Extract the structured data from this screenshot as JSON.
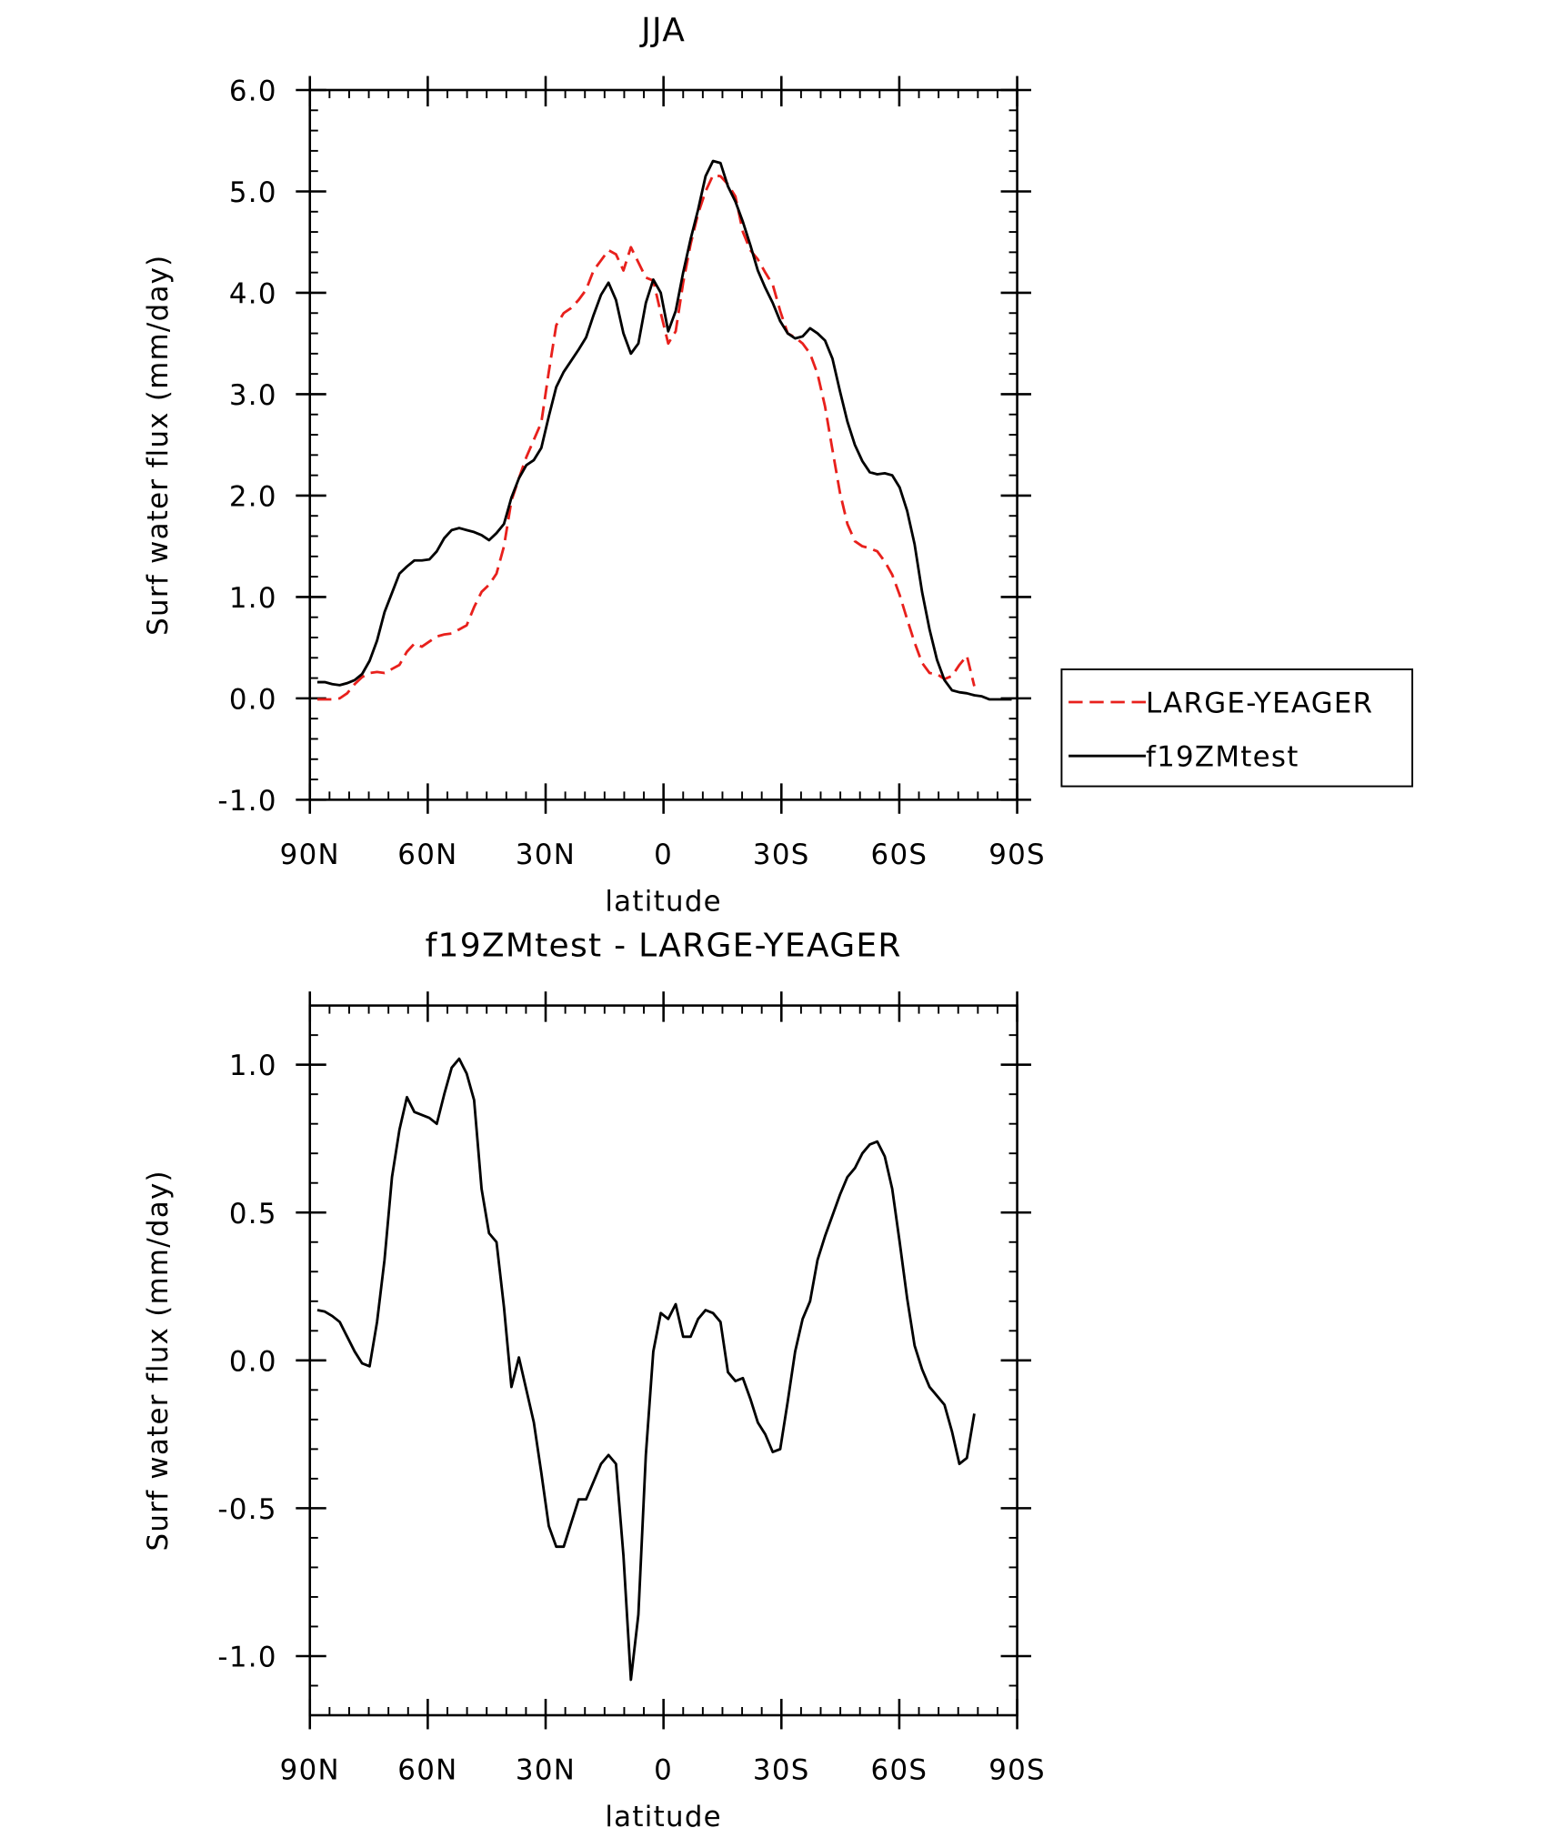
{
  "chart_data": [
    {
      "type": "line",
      "title": "JJA",
      "xlabel": "latitude",
      "ylabel": "Surf water flux (mm/day)",
      "x": [
        88.1,
        86.2,
        84.3,
        82.4,
        80.5,
        78.6,
        76.7,
        74.8,
        72.9,
        71.0,
        69.1,
        67.2,
        65.3,
        63.4,
        61.5,
        59.6,
        57.7,
        55.8,
        53.9,
        52.0,
        50.1,
        48.2,
        46.3,
        44.4,
        42.5,
        40.6,
        38.7,
        36.8,
        34.9,
        33.0,
        31.1,
        29.2,
        27.3,
        25.4,
        23.5,
        21.6,
        19.7,
        17.8,
        15.9,
        14.0,
        12.1,
        10.2,
        8.3,
        6.4,
        4.5,
        2.6,
        0.7,
        -1.2,
        -3.1,
        -5.0,
        -6.9,
        -8.8,
        -10.7,
        -12.6,
        -14.5,
        -16.4,
        -18.3,
        -20.2,
        -22.1,
        -24.0,
        -25.9,
        -27.8,
        -29.7,
        -31.6,
        -33.5,
        -35.4,
        -37.3,
        -39.2,
        -41.1,
        -43.0,
        -44.9,
        -46.8,
        -48.7,
        -50.6,
        -52.5,
        -54.4,
        -56.3,
        -58.2,
        -60.1,
        -62.0,
        -63.9,
        -65.8,
        -67.7,
        -69.6,
        -71.5,
        -73.4,
        -75.3,
        -77.2,
        -79.1,
        -81.0,
        -82.9,
        -84.8,
        -86.7,
        -88.6
      ],
      "series": [
        {
          "name": "LARGE-YEAGER",
          "color": "#e8201c",
          "dash": true,
          "values": [
            -0.01,
            -0.01,
            -0.01,
            0.0,
            0.05,
            0.14,
            0.21,
            0.25,
            0.26,
            0.25,
            0.29,
            0.33,
            0.46,
            0.54,
            0.51,
            0.56,
            0.61,
            0.63,
            0.64,
            0.68,
            0.72,
            0.9,
            1.05,
            1.12,
            1.23,
            1.5,
            1.95,
            2.17,
            2.38,
            2.55,
            2.72,
            3.22,
            3.68,
            3.8,
            3.85,
            3.93,
            4.03,
            4.22,
            4.32,
            4.42,
            4.38,
            4.22,
            4.45,
            4.3,
            4.15,
            4.12,
            3.8,
            3.5,
            3.62,
            4.1,
            4.48,
            4.78,
            5.0,
            5.16,
            5.15,
            5.07,
            4.95,
            4.6,
            4.42,
            4.33,
            4.2,
            4.08,
            3.82,
            3.6,
            3.56,
            3.5,
            3.4,
            3.2,
            2.88,
            2.45,
            2.03,
            1.72,
            1.55,
            1.5,
            1.48,
            1.45,
            1.35,
            1.22,
            1.02,
            0.78,
            0.55,
            0.35,
            0.25,
            0.24,
            0.19,
            0.22,
            0.33,
            0.42,
            0.12,
            null,
            null,
            null,
            null,
            null
          ]
        },
        {
          "name": "f19ZMtest",
          "color": "#000000",
          "dash": false,
          "values": [
            0.16,
            0.16,
            0.14,
            0.13,
            0.15,
            0.18,
            0.24,
            0.37,
            0.57,
            0.85,
            1.04,
            1.23,
            1.3,
            1.36,
            1.36,
            1.37,
            1.45,
            1.58,
            1.66,
            1.68,
            1.66,
            1.64,
            1.61,
            1.56,
            1.63,
            1.72,
            1.98,
            2.17,
            2.3,
            2.35,
            2.47,
            2.78,
            3.07,
            3.22,
            3.33,
            3.44,
            3.56,
            3.78,
            3.98,
            4.1,
            3.93,
            3.6,
            3.4,
            3.5,
            3.9,
            4.13,
            4.0,
            3.62,
            3.82,
            4.2,
            4.53,
            4.82,
            5.15,
            5.3,
            5.28,
            5.05,
            4.9,
            4.7,
            4.47,
            4.22,
            4.05,
            3.9,
            3.72,
            3.6,
            3.55,
            3.57,
            3.65,
            3.6,
            3.53,
            3.35,
            3.03,
            2.73,
            2.5,
            2.34,
            2.23,
            2.21,
            2.22,
            2.2,
            2.08,
            1.85,
            1.52,
            1.05,
            0.68,
            0.38,
            0.18,
            0.08,
            0.06,
            0.05,
            0.03,
            0.02,
            -0.01,
            -0.01,
            -0.01,
            -0.01
          ]
        }
      ],
      "xlim": [
        90,
        -90
      ],
      "xticks": [
        {
          "value": 90,
          "label": "90N"
        },
        {
          "value": 60,
          "label": "60N"
        },
        {
          "value": 30,
          "label": "30N"
        },
        0,
        {
          "value": -30,
          "label": "30S"
        },
        {
          "value": -60,
          "label": "60S"
        },
        {
          "value": -90,
          "label": "90S"
        }
      ],
      "ylim": [
        -1,
        6
      ],
      "yticks": [
        {
          "value": -1,
          "label": "-1.0"
        },
        {
          "value": 0,
          "label": "0.0"
        },
        {
          "value": 1,
          "label": "1.0"
        },
        {
          "value": 2,
          "label": "2.0"
        },
        {
          "value": 3,
          "label": "3.0"
        },
        {
          "value": 4,
          "label": "4.0"
        },
        {
          "value": 5,
          "label": "5.0"
        },
        {
          "value": 6,
          "label": "6.0"
        }
      ],
      "legend": "right",
      "grid": false
    },
    {
      "type": "line",
      "title": "f19ZMtest - LARGE-YEAGER",
      "xlabel": "latitude",
      "ylabel": "Surf water flux (mm/day)",
      "x": [
        88.1,
        86.2,
        84.3,
        82.4,
        80.5,
        78.6,
        76.7,
        74.8,
        72.9,
        71.0,
        69.1,
        67.2,
        65.3,
        63.4,
        61.5,
        59.6,
        57.7,
        55.8,
        53.9,
        52.0,
        50.1,
        48.2,
        46.3,
        44.4,
        42.5,
        40.6,
        38.7,
        36.8,
        34.9,
        33.0,
        31.1,
        29.2,
        27.3,
        25.4,
        23.5,
        21.6,
        19.7,
        17.8,
        15.9,
        14.0,
        12.1,
        10.2,
        8.3,
        6.4,
        4.5,
        2.6,
        0.7,
        -1.2,
        -3.1,
        -5.0,
        -6.9,
        -8.8,
        -10.7,
        -12.6,
        -14.5,
        -16.4,
        -18.3,
        -20.2,
        -22.1,
        -24.0,
        -25.9,
        -27.8,
        -29.7,
        -31.6,
        -33.5,
        -35.4,
        -37.3,
        -39.2,
        -41.1,
        -43.0,
        -44.9,
        -46.8,
        -48.7,
        -50.6,
        -52.5,
        -54.4,
        -56.3,
        -58.2,
        -60.1,
        -62.0,
        -63.9,
        -65.8,
        -67.7,
        -69.6,
        -71.5,
        -73.4,
        -75.3,
        -77.2,
        -79.1,
        -81.0,
        -82.9,
        -84.8,
        -86.7,
        -88.6
      ],
      "series": [
        {
          "color": "#000000",
          "dash": false,
          "values": [
            0.17,
            0.165,
            0.15,
            0.13,
            0.08,
            0.03,
            -0.01,
            -0.02,
            0.13,
            0.34,
            0.62,
            0.78,
            0.89,
            0.84,
            0.83,
            0.82,
            0.8,
            0.9,
            0.99,
            1.02,
            0.97,
            0.88,
            0.58,
            0.43,
            0.4,
            0.18,
            -0.09,
            0.01,
            -0.1,
            -0.21,
            -0.38,
            -0.56,
            -0.63,
            -0.63,
            -0.55,
            -0.47,
            -0.47,
            -0.41,
            -0.35,
            -0.32,
            -0.35,
            -0.66,
            -1.08,
            -0.86,
            -0.32,
            0.03,
            0.16,
            0.14,
            0.19,
            0.08,
            0.08,
            0.14,
            0.17,
            0.16,
            0.13,
            -0.04,
            -0.07,
            -0.06,
            -0.13,
            -0.21,
            -0.25,
            -0.31,
            -0.3,
            -0.14,
            0.03,
            0.14,
            0.2,
            0.34,
            0.42,
            0.49,
            0.56,
            0.62,
            0.65,
            0.7,
            0.73,
            0.74,
            0.69,
            0.58,
            0.4,
            0.21,
            0.05,
            -0.03,
            -0.09,
            -0.12,
            -0.15,
            -0.24,
            -0.35,
            -0.33,
            -0.18,
            null,
            null,
            null,
            null,
            null
          ]
        }
      ],
      "xlim": [
        90,
        -90
      ],
      "xticks": [
        {
          "value": 90,
          "label": "90N"
        },
        {
          "value": 60,
          "label": "60N"
        },
        {
          "value": 30,
          "label": "30N"
        },
        0,
        {
          "value": -30,
          "label": "30S"
        },
        {
          "value": -60,
          "label": "60S"
        },
        {
          "value": -90,
          "label": "90S"
        }
      ],
      "ylim": [
        -1.2,
        1.2
      ],
      "yticks": [
        {
          "value": -1,
          "label": "-1.0"
        },
        -0.5,
        {
          "value": 0,
          "label": "0.0"
        },
        0.5,
        {
          "value": 1,
          "label": "1.0"
        }
      ],
      "grid": false
    }
  ]
}
